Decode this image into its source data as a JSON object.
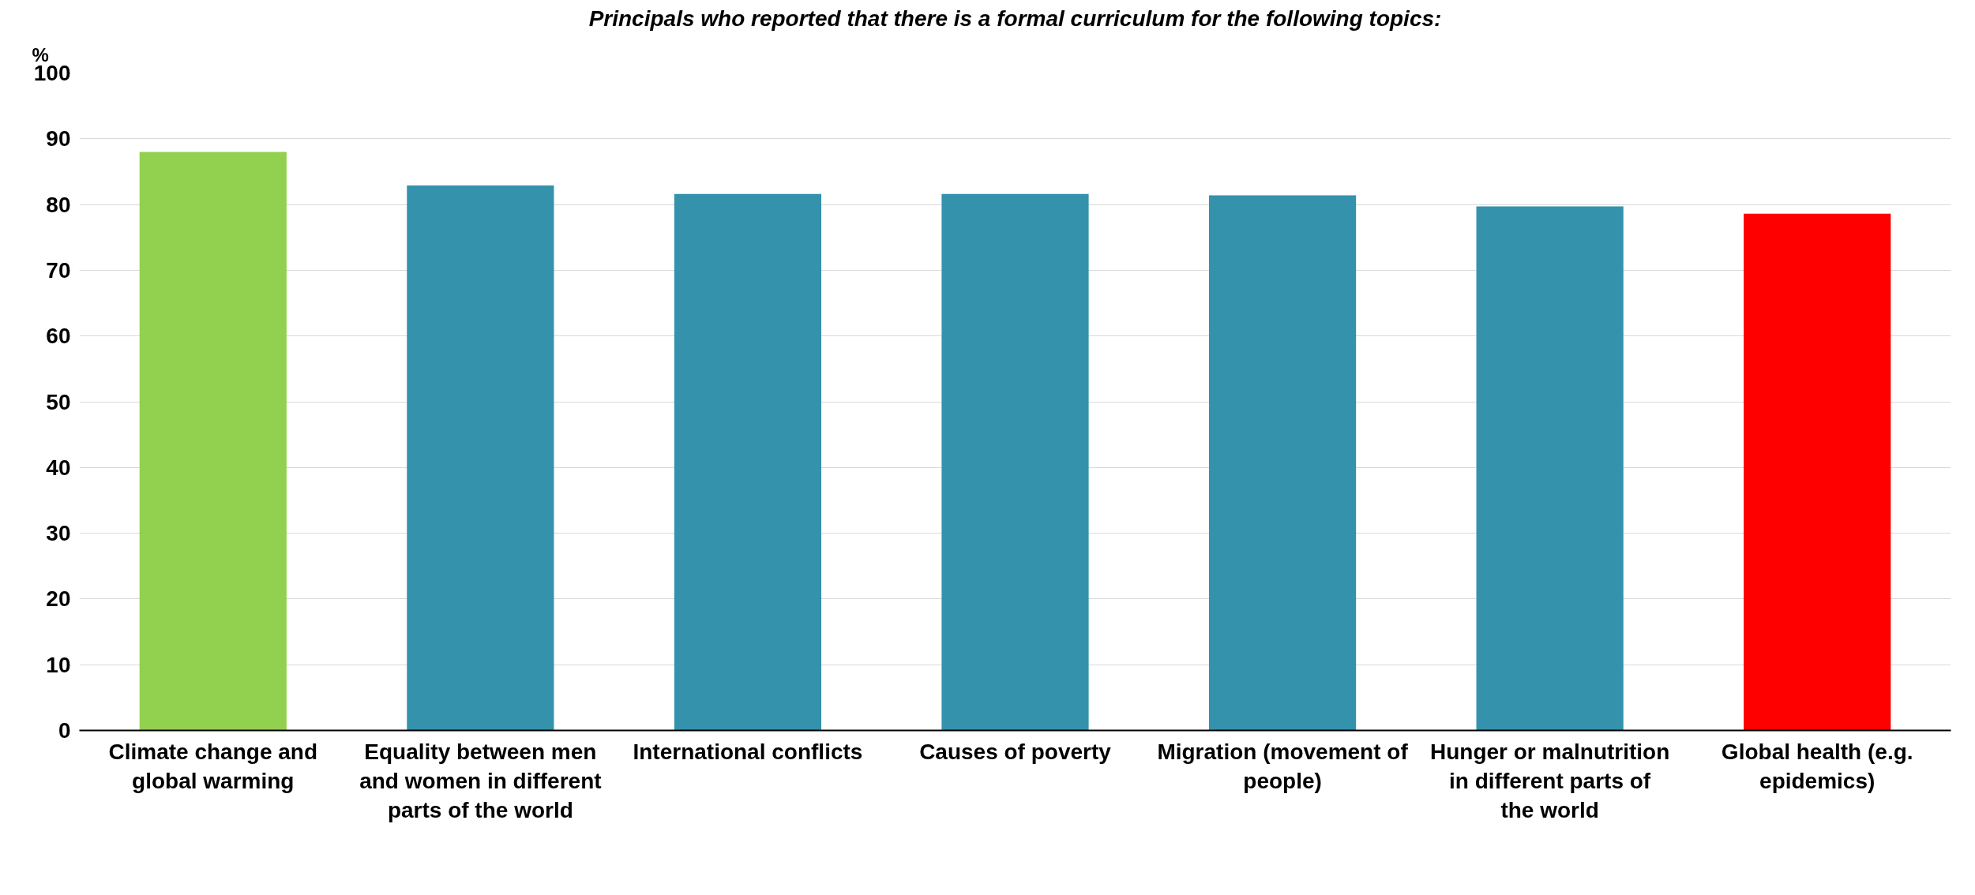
{
  "chart_data": {
    "type": "bar",
    "title": "Principals who reported that there is a formal curriculum for the following topics:",
    "ylabel": "%",
    "categories": [
      "Climate change and global warming",
      "Equality between men and women in different parts of the world",
      "International conflicts",
      "Causes of poverty",
      "Migration (movement of people)",
      "Hunger or malnutrition in different parts of the world",
      "Global health (e.g. epidemics)"
    ],
    "values": [
      88.0,
      82.9,
      81.6,
      81.6,
      81.4,
      79.7,
      78.6
    ],
    "colors": [
      "#92d050",
      "#3492ad",
      "#3492ad",
      "#3492ad",
      "#3492ad",
      "#3492ad",
      "#ff0000"
    ],
    "ylim": [
      0,
      100
    ],
    "yticks": [
      0,
      10,
      20,
      30,
      40,
      50,
      60,
      70,
      80,
      90,
      100
    ],
    "grid": "y"
  }
}
